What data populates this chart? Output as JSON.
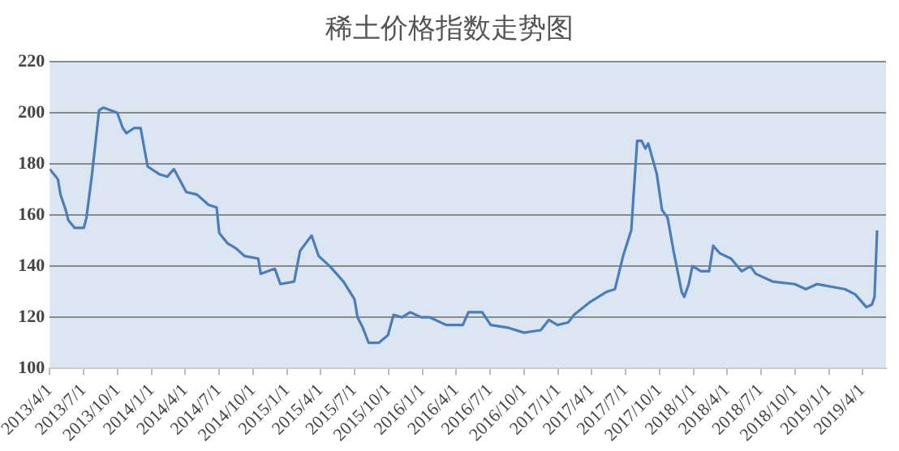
{
  "chart_data": {
    "type": "line",
    "title": "稀土价格指数走势图",
    "x": [
      "2013-04-01",
      "2013-04-23",
      "2013-04-30",
      "2013-05-14",
      "2013-05-21",
      "2013-06-07",
      "2013-07-02",
      "2013-07-09",
      "2013-07-24",
      "2013-08-12",
      "2013-08-24",
      "2013-09-30",
      "2013-10-15",
      "2013-10-25",
      "2013-11-14",
      "2013-12-02",
      "2013-12-21",
      "2014-01-21",
      "2014-02-12",
      "2014-03-02",
      "2014-04-04",
      "2014-05-03",
      "2014-06-03",
      "2014-06-25",
      "2014-07-02",
      "2014-07-24",
      "2014-08-16",
      "2014-09-08",
      "2014-10-15",
      "2014-10-22",
      "2014-11-29",
      "2014-12-14",
      "2015-01-20",
      "2015-02-05",
      "2015-03-08",
      "2015-03-27",
      "2015-04-26",
      "2015-06-02",
      "2015-07-02",
      "2015-07-10",
      "2015-07-24",
      "2015-08-09",
      "2015-09-05",
      "2015-09-30",
      "2015-10-15",
      "2015-11-07",
      "2015-11-29",
      "2015-12-29",
      "2016-01-21",
      "2016-03-05",
      "2016-04-19",
      "2016-05-04",
      "2016-06-10",
      "2016-07-03",
      "2016-08-17",
      "2016-10-01",
      "2016-11-15",
      "2016-12-07",
      "2016-12-30",
      "2017-01-28",
      "2017-02-13",
      "2017-03-28",
      "2017-05-12",
      "2017-06-03",
      "2017-06-25",
      "2017-07-17",
      "2017-08-02",
      "2017-08-14",
      "2017-08-24",
      "2017-09-01",
      "2017-09-24",
      "2017-10-08",
      "2017-10-23",
      "2017-11-08",
      "2017-11-30",
      "2017-12-07",
      "2017-12-19",
      "2017-12-29",
      "2018-01-21",
      "2018-02-12",
      "2018-02-23",
      "2018-03-13",
      "2018-04-12",
      "2018-05-11",
      "2018-06-03",
      "2018-06-18",
      "2018-08-02",
      "2018-10-01",
      "2018-10-31",
      "2018-11-30",
      "2019-02-13",
      "2019-03-13",
      "2019-04-12",
      "2019-04-27",
      "2019-05-04",
      "2019-05-11"
    ],
    "series": [
      {
        "color": "#4a7ebb",
        "values": [
          178,
          174,
          168,
          162,
          158,
          155,
          155,
          159,
          176,
          201,
          202,
          200,
          194,
          192,
          194,
          194,
          179,
          176,
          175,
          178,
          169,
          168,
          164,
          163,
          153,
          149,
          147,
          144,
          143,
          137,
          139,
          133,
          134,
          146,
          152,
          144,
          140,
          134,
          127,
          120,
          116,
          110,
          110,
          113,
          121,
          120,
          122,
          120,
          120,
          117,
          117,
          122,
          122,
          117,
          116,
          114,
          115,
          119,
          117,
          118,
          121,
          126,
          130,
          131,
          144,
          154,
          189,
          189,
          186,
          188,
          176,
          162,
          159,
          146,
          130,
          128,
          133,
          140,
          138,
          138,
          148,
          145,
          143,
          138,
          140,
          137,
          134,
          133,
          131,
          133,
          131,
          129,
          124,
          125,
          128,
          154
        ]
      }
    ],
    "xlim": [
      "2013-04-01",
      "2019-06-04"
    ],
    "xticks": [
      {
        "value": "2013-04-01",
        "label": "2013/4/1"
      },
      {
        "value": "2013-07-01",
        "label": "2013/7/1"
      },
      {
        "value": "2013-10-01",
        "label": "2013/10/1"
      },
      {
        "value": "2014-01-01",
        "label": "2014/1/1"
      },
      {
        "value": "2014-04-01",
        "label": "2014/4/1"
      },
      {
        "value": "2014-07-01",
        "label": "2014/7/1"
      },
      {
        "value": "2014-10-01",
        "label": "2014/10/1"
      },
      {
        "value": "2015-01-01",
        "label": "2015/1/1"
      },
      {
        "value": "2015-04-01",
        "label": "2015/4/1"
      },
      {
        "value": "2015-07-01",
        "label": "2015/7/1"
      },
      {
        "value": "2015-10-01",
        "label": "2015/10/1"
      },
      {
        "value": "2016-01-01",
        "label": "2016/1/1"
      },
      {
        "value": "2016-04-01",
        "label": "2016/4/1"
      },
      {
        "value": "2016-07-01",
        "label": "2016/7/1"
      },
      {
        "value": "2016-10-01",
        "label": "2016/10/1"
      },
      {
        "value": "2017-01-01",
        "label": "2017/1/1"
      },
      {
        "value": "2017-04-01",
        "label": "2017/4/1"
      },
      {
        "value": "2017-07-01",
        "label": "2017/7/1"
      },
      {
        "value": "2017-10-01",
        "label": "2017/10/1"
      },
      {
        "value": "2018-01-01",
        "label": "2018/1/1"
      },
      {
        "value": "2018-04-01",
        "label": "2018/4/1"
      },
      {
        "value": "2018-07-01",
        "label": "2018/7/1"
      },
      {
        "value": "2018-10-01",
        "label": "2018/10/1"
      },
      {
        "value": "2019-01-01",
        "label": "2019/1/1"
      },
      {
        "value": "2019-04-01",
        "label": "2019/4/1"
      }
    ],
    "ylim": [
      100,
      220
    ],
    "yticks": [
      100,
      120,
      140,
      160,
      180,
      200,
      220
    ],
    "grid": "y",
    "legend": false,
    "marker": "none",
    "line_style": "solid"
  }
}
